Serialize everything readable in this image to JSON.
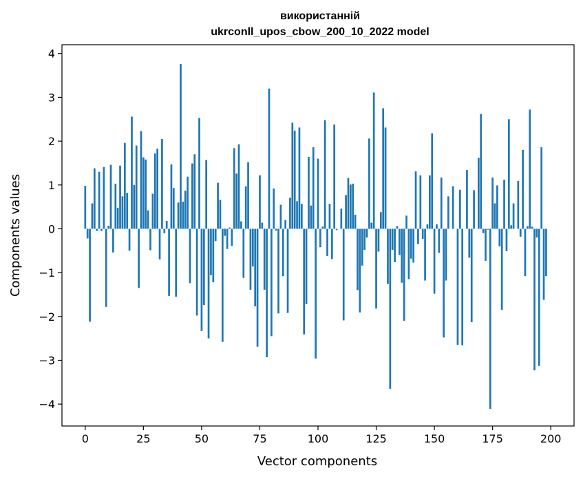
{
  "chart_data": {
    "type": "bar",
    "title_lines": [
      "використанній",
      "ukrconll_upos_cbow_200_10_2022 model"
    ],
    "xlabel": "Vector components",
    "ylabel": "Components values",
    "xlim": [
      -10,
      210
    ],
    "ylim": [
      -4.5,
      4.2
    ],
    "xticks": [
      0,
      25,
      50,
      75,
      100,
      125,
      150,
      175,
      200
    ],
    "yticks": [
      -4,
      -3,
      -2,
      -1,
      0,
      1,
      2,
      3,
      4
    ],
    "ytick_labels": [
      "−4",
      "−3",
      "−2",
      "−1",
      "0",
      "1",
      "2",
      "3",
      "4"
    ],
    "grid": false,
    "color": "#1f77b4",
    "values": [
      0.98,
      -0.22,
      -2.12,
      0.58,
      1.38,
      -0.05,
      1.3,
      -0.05,
      1.41,
      -1.78,
      0.07,
      1.46,
      -0.54,
      1.03,
      0.48,
      1.44,
      0.74,
      1.96,
      0.82,
      -0.5,
      2.56,
      1.0,
      1.9,
      -1.35,
      2.23,
      1.63,
      1.58,
      0.42,
      -0.49,
      0.8,
      1.72,
      1.83,
      -0.7,
      2.05,
      -0.1,
      0.18,
      -1.53,
      1.47,
      0.93,
      -1.55,
      0.6,
      3.76,
      0.62,
      0.87,
      1.19,
      -1.24,
      1.49,
      1.7,
      -1.98,
      2.53,
      -2.33,
      -1.74,
      1.57,
      -2.5,
      -1.06,
      -1.22,
      -0.28,
      1.05,
      0.66,
      -2.58,
      -0.16,
      -0.46,
      0.03,
      -0.39,
      1.84,
      1.26,
      1.93,
      0.17,
      -1.12,
      0.97,
      1.52,
      -1.39,
      -0.86,
      -1.77,
      -2.69,
      1.22,
      0.14,
      -1.39,
      -2.93,
      3.2,
      -2.45,
      0.92,
      -0.04,
      -1.93,
      0.55,
      -1.08,
      0.2,
      -1.92,
      0.71,
      2.42,
      2.24,
      0.63,
      2.31,
      0.57,
      -2.41,
      -1.72,
      1.64,
      0.53,
      1.86,
      -2.96,
      1.6,
      -0.42,
      0.05,
      2.48,
      -0.62,
      0.57,
      -0.69,
      2.38,
      -0.03,
      0.0,
      0.46,
      -2.09,
      0.77,
      1.16,
      1.01,
      1.03,
      0.32,
      -1.4,
      -1.91,
      -0.84,
      -0.48,
      -0.2,
      2.06,
      0.14,
      3.11,
      -1.82,
      -0.52,
      0.38,
      2.75,
      2.31,
      -1.26,
      -3.65,
      -0.48,
      -0.76,
      0.06,
      -0.6,
      -1.23,
      -2.1,
      0.3,
      -1.15,
      -0.68,
      -0.77,
      1.31,
      -0.35,
      1.22,
      -0.23,
      -1.18,
      0.1,
      1.22,
      2.18,
      -1.48,
      0.1,
      -0.55,
      1.17,
      -2.48,
      -1.18,
      0.74,
      0.0,
      0.97,
      0.0,
      -2.65,
      0.89,
      -2.66,
      0.0,
      1.34,
      -0.66,
      -2.13,
      0.88,
      0.0,
      1.62,
      2.62,
      -0.1,
      -0.73,
      -0.02,
      -4.11,
      1.17,
      0.58,
      0.99,
      -0.4,
      -1.85,
      1.12,
      -0.51,
      2.5,
      0.08,
      0.58,
      0.0,
      1.09,
      -0.18,
      1.8,
      -1.08,
      0.06,
      2.72,
      0.05,
      -3.23,
      -0.2,
      -3.13,
      1.86,
      -1.62,
      -1.08
    ]
  }
}
